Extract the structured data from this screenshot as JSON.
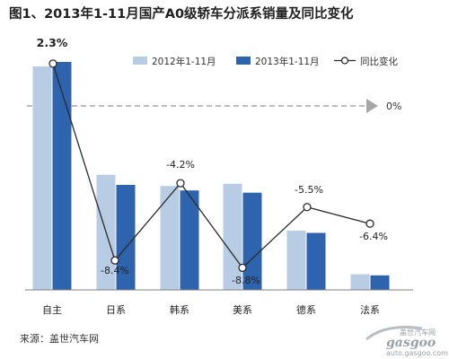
{
  "chart_data": {
    "type": "bar",
    "title": "图1、2013年1-11月国产A0级轿车分派系销量及同比变化",
    "categories": [
      "自主",
      "日系",
      "韩系",
      "美系",
      "德系",
      "法系"
    ],
    "series": [
      {
        "name": "2012年1-11月",
        "color": "#b8cce4",
        "values": [
          100,
          51.5,
          46.5,
          47.5,
          26.5,
          7.0
        ]
      },
      {
        "name": "2013年1-11月",
        "color": "#2e63ad",
        "values": [
          102,
          47,
          44.5,
          43.5,
          25.5,
          6.5
        ]
      }
    ],
    "line": {
      "name": "同比变化",
      "values": [
        2.3,
        -8.4,
        -4.2,
        -8.8,
        -5.5,
        -6.4
      ],
      "labels": [
        "2.3%",
        "-8.4%",
        "-4.2%",
        "-8.8%",
        "-5.5%",
        "-6.4%"
      ]
    },
    "reference_line": {
      "value": 0,
      "label": "0%"
    },
    "legend_position": "top-right",
    "grid": false
  },
  "footer": {
    "source": "来源：盖世汽车网",
    "watermark_brand": "gasgoo",
    "watermark_url": "auto.gasgoo.com",
    "watermark_cn": "盖世汽车网"
  }
}
